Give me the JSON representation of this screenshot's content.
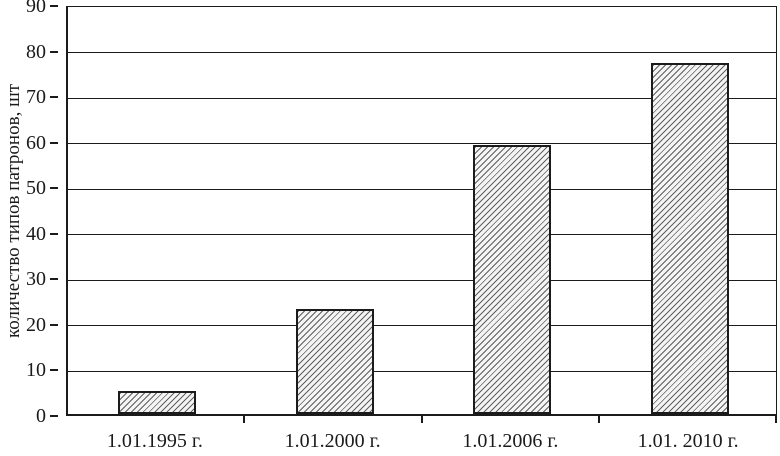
{
  "chart_data": {
    "type": "bar",
    "title": "",
    "xlabel": "",
    "ylabel": "количество типов патронов, шт",
    "categories": [
      "1.01.1995 г.",
      "1.01.2000 г.",
      "1.01.2006 г.",
      "1.01. 2010 г."
    ],
    "values": [
      5,
      23,
      59,
      77
    ],
    "ylim": [
      0,
      90
    ],
    "ytick_step": 10,
    "yticks": [
      0,
      10,
      20,
      30,
      40,
      50,
      60,
      70,
      80,
      90
    ],
    "grid": true,
    "legend": null,
    "bar_fill": "diagonal-hatch",
    "colors": {
      "background": "#ffffff",
      "axis": "#1b1b1b",
      "grid": "#1b1b1b",
      "text": "#1b1b1b",
      "bar_border": "#1b1b1b",
      "bar_background": "#f4f4f4",
      "hatch_line": "#5f5f5f"
    }
  }
}
